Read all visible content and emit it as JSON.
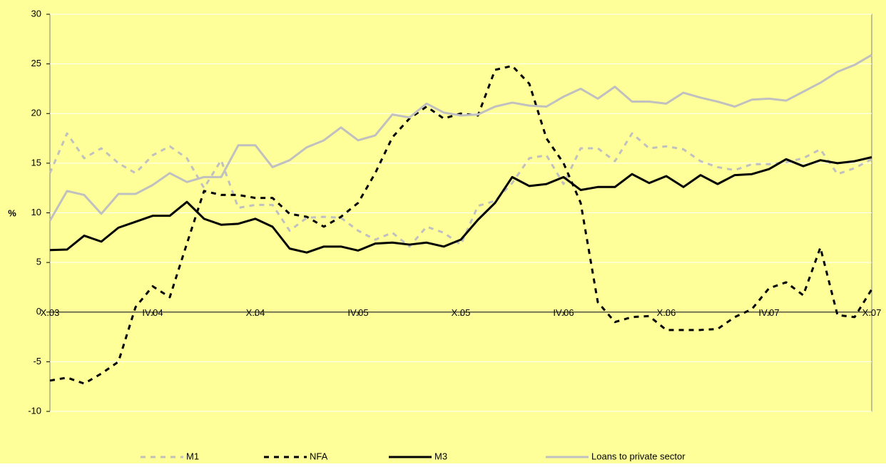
{
  "chart_data": {
    "type": "line",
    "y_label": "%",
    "categories": [
      "X.03",
      null,
      null,
      null,
      null,
      null,
      "IV.04",
      null,
      null,
      null,
      null,
      null,
      "X.04",
      null,
      null,
      null,
      null,
      null,
      "IV.05",
      null,
      null,
      null,
      null,
      null,
      "X.05",
      null,
      null,
      null,
      null,
      null,
      "IV.06",
      null,
      null,
      null,
      null,
      null,
      "X.06",
      null,
      null,
      null,
      null,
      null,
      "IV.07",
      null,
      null,
      null,
      null,
      null,
      "X.07"
    ],
    "series": [
      {
        "name": "M1",
        "color": "#c0c0c0",
        "style": "dashed",
        "values": [
          14.0,
          18.0,
          15.5,
          16.5,
          15.0,
          14.0,
          15.8,
          16.7,
          15.5,
          12.5,
          15.3,
          10.5,
          10.8,
          10.8,
          8.2,
          9.5,
          9.6,
          9.5,
          8.2,
          7.3,
          8.0,
          6.6,
          8.6,
          8.0,
          6.8,
          10.7,
          11.2,
          13.0,
          15.5,
          15.8,
          12.9,
          16.5,
          16.5,
          15.2,
          18.0,
          16.5,
          16.7,
          16.4,
          15.2,
          14.6,
          14.3,
          14.9,
          14.9,
          15.1,
          15.5,
          16.4,
          13.9,
          14.5,
          15.4
        ]
      },
      {
        "name": "NFA",
        "color": "#000000",
        "style": "dashed",
        "values": [
          -6.9,
          -6.6,
          -7.2,
          -6.2,
          -5.0,
          0.5,
          2.6,
          1.5,
          6.9,
          12.2,
          11.8,
          11.8,
          11.5,
          11.5,
          9.9,
          9.6,
          8.6,
          9.6,
          11.0,
          14.0,
          17.6,
          19.5,
          20.7,
          19.5,
          20.0,
          19.8,
          24.4,
          24.8,
          23.0,
          17.5,
          15.0,
          11.0,
          1.0,
          -1.0,
          -0.5,
          -0.4,
          -1.8,
          -1.8,
          -1.8,
          -1.7,
          -0.5,
          0.3,
          2.4,
          3.0,
          1.7,
          6.5,
          -0.3,
          -0.5,
          2.3
        ]
      },
      {
        "name": "M3",
        "color": "#000000",
        "style": "solid",
        "values": [
          6.25,
          6.3,
          7.7,
          7.1,
          8.5,
          9.1,
          9.7,
          9.7,
          11.1,
          9.4,
          8.8,
          8.9,
          9.4,
          8.6,
          6.4,
          6.0,
          6.6,
          6.6,
          6.2,
          6.9,
          7.0,
          6.8,
          7.0,
          6.6,
          7.3,
          9.3,
          11.0,
          13.6,
          12.7,
          12.9,
          13.6,
          12.3,
          12.6,
          12.6,
          13.9,
          13.0,
          13.7,
          12.6,
          13.8,
          12.9,
          13.8,
          13.9,
          14.4,
          15.4,
          14.7,
          15.3,
          15.0,
          15.2,
          15.6
        ]
      },
      {
        "name": "Loans to private sector",
        "color": "#c0c0c0",
        "style": "solid",
        "values": [
          9.2,
          12.2,
          11.8,
          9.9,
          11.9,
          11.9,
          12.8,
          14.0,
          13.1,
          13.6,
          13.6,
          16.8,
          16.8,
          14.6,
          15.3,
          16.6,
          17.3,
          18.6,
          17.3,
          17.8,
          19.9,
          19.6,
          21.0,
          20.1,
          19.8,
          19.9,
          20.7,
          21.1,
          20.8,
          20.7,
          21.7,
          22.5,
          21.5,
          22.7,
          21.2,
          21.2,
          21.0,
          22.1,
          21.6,
          21.2,
          20.7,
          21.4,
          21.5,
          21.3,
          22.2,
          23.1,
          24.2,
          24.9,
          25.9
        ]
      }
    ],
    "ylim": [
      -10,
      30
    ],
    "yticks": [
      -10,
      -5,
      0,
      5,
      10,
      15,
      20,
      25,
      30
    ],
    "grid": true,
    "grid_color": "#ffffff",
    "background": "#ffff99",
    "legend": "bottom"
  }
}
